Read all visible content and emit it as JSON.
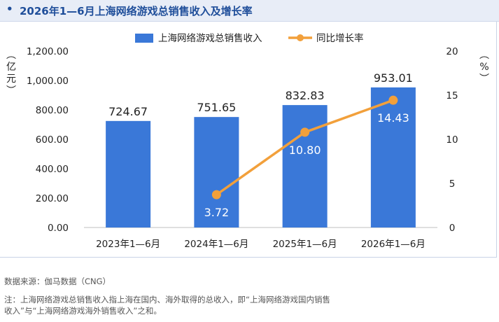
{
  "header": {
    "bullet": "•",
    "title": "2026年1—6月上海网络游戏总销售收入及增长率"
  },
  "chart_data": {
    "type": "bar",
    "categories": [
      "2023年1—6月",
      "2024年1—6月",
      "2025年1—6月",
      "2026年1—6月"
    ],
    "series": [
      {
        "name": "上海网络游戏总销售收入",
        "type": "bar",
        "axis": "left",
        "color": "#3a78d8",
        "values": [
          724.67,
          751.65,
          832.83,
          953.01
        ],
        "labels": [
          "724.67",
          "751.65",
          "832.83",
          "953.01"
        ]
      },
      {
        "name": "同比增长率",
        "type": "line",
        "axis": "right",
        "color": "#f2a03b",
        "values": [
          null,
          3.72,
          10.8,
          14.43
        ],
        "labels": [
          "",
          "3.72",
          "10.80",
          "14.43"
        ]
      }
    ],
    "ylabel_left": "（亿元）",
    "ylabel_right": "（%）",
    "ylim_left": [
      0,
      1200
    ],
    "ylim_right": [
      0,
      20
    ],
    "yticks_left": [
      "0.00",
      "200.00",
      "400.00",
      "600.00",
      "800.00",
      "1,000.00",
      "1,200.00"
    ],
    "yticks_right": [
      "0",
      "5",
      "10",
      "15",
      "20"
    ],
    "grid": false,
    "legend_position": "top-center"
  },
  "footer": {
    "source": "数据来源：伽马数据（CNG）",
    "note_line1": "注：上海网络游戏总销售收入指上海在国内、海外取得的总收入，即“上海网络游戏国内销售",
    "note_line2": "收入”与“上海网络游戏海外销售收入”之和。"
  }
}
